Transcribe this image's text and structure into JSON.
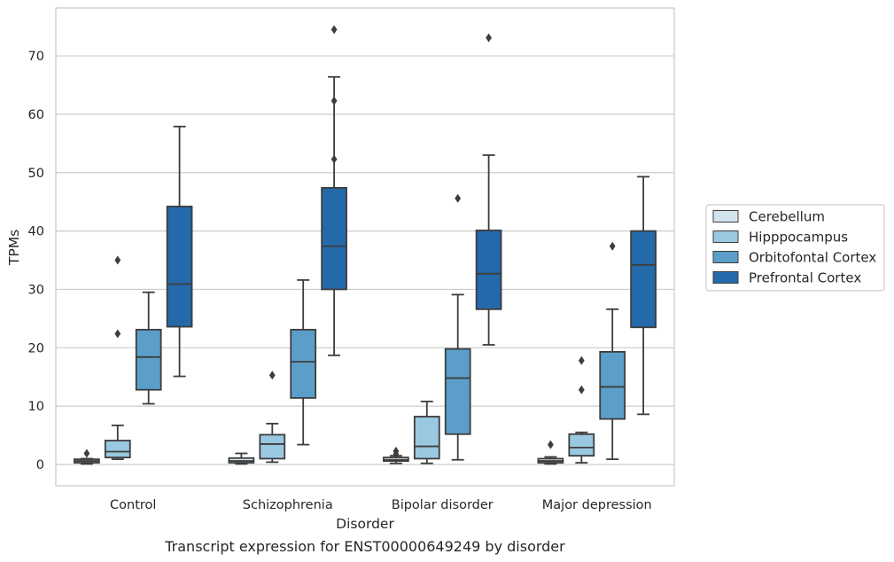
{
  "chart_data": {
    "type": "box",
    "xlabel": "Disorder",
    "ylabel": "TPMs",
    "caption": "Transcript expression for ENST00000649249 by disorder",
    "ylim": [
      -3.5,
      78
    ],
    "yticks": [
      0,
      10,
      20,
      30,
      40,
      50,
      60,
      70
    ],
    "grid": "horizontal",
    "legend_position": "right",
    "categories": [
      "Control",
      "Schizophrenia",
      "Bipolar disorder",
      "Major depression"
    ],
    "series": [
      {
        "name": "Cerebellum",
        "color": "#d3e3ee",
        "boxes": [
          {
            "whislo": 0.1,
            "q1": 0.3,
            "med": 0.6,
            "q3": 0.9,
            "whishi": 1.0,
            "fliers": [
              1.9
            ]
          },
          {
            "whislo": 0.1,
            "q1": 0.3,
            "med": 0.6,
            "q3": 1.1,
            "whishi": 1.9,
            "fliers": []
          },
          {
            "whislo": 0.2,
            "q1": 0.6,
            "med": 0.8,
            "q3": 1.2,
            "whishi": 1.5,
            "fliers": [
              1.8,
              2.3
            ]
          },
          {
            "whislo": 0.1,
            "q1": 0.3,
            "med": 0.6,
            "q3": 1.0,
            "whishi": 1.3,
            "fliers": [
              3.4
            ]
          }
        ]
      },
      {
        "name": "Hipppocampus",
        "color": "#9ac8e0",
        "boxes": [
          {
            "whislo": 0.9,
            "q1": 1.2,
            "med": 2.2,
            "q3": 4.1,
            "whishi": 6.7,
            "fliers": [
              22.4,
              35.0
            ]
          },
          {
            "whislo": 0.4,
            "q1": 1.0,
            "med": 3.5,
            "q3": 5.1,
            "whishi": 7.0,
            "fliers": [
              15.3
            ]
          },
          {
            "whislo": 0.2,
            "q1": 1.0,
            "med": 3.1,
            "q3": 8.2,
            "whishi": 10.8,
            "fliers": []
          },
          {
            "whislo": 0.3,
            "q1": 1.5,
            "med": 2.9,
            "q3": 5.2,
            "whishi": 5.5,
            "fliers": [
              12.8,
              17.8
            ]
          }
        ]
      },
      {
        "name": "Orbitofontal Cortex",
        "color": "#5b9ec9",
        "boxes": [
          {
            "whislo": 10.4,
            "q1": 12.8,
            "med": 18.4,
            "q3": 23.1,
            "whishi": 29.5,
            "fliers": []
          },
          {
            "whislo": 3.4,
            "q1": 11.4,
            "med": 17.6,
            "q3": 23.1,
            "whishi": 31.6,
            "fliers": []
          },
          {
            "whislo": 0.8,
            "q1": 5.2,
            "med": 14.8,
            "q3": 19.8,
            "whishi": 29.1,
            "fliers": [
              45.6
            ]
          },
          {
            "whislo": 0.9,
            "q1": 7.8,
            "med": 13.3,
            "q3": 19.3,
            "whishi": 26.6,
            "fliers": [
              37.4
            ]
          }
        ]
      },
      {
        "name": "Prefrontal Cortex",
        "color": "#2469a9",
        "boxes": [
          {
            "whislo": 15.1,
            "q1": 23.6,
            "med": 30.9,
            "q3": 44.2,
            "whishi": 57.9,
            "fliers": []
          },
          {
            "whislo": 18.7,
            "q1": 30.0,
            "med": 37.4,
            "q3": 47.4,
            "whishi": 66.4,
            "fliers": [
              52.3,
              62.3,
              74.5
            ]
          },
          {
            "whislo": 20.5,
            "q1": 26.6,
            "med": 32.7,
            "q3": 40.1,
            "whishi": 53.0,
            "fliers": [
              73.1
            ]
          },
          {
            "whislo": 8.6,
            "q1": 23.5,
            "med": 34.2,
            "q3": 40.0,
            "whishi": 49.3,
            "fliers": []
          }
        ]
      }
    ]
  }
}
